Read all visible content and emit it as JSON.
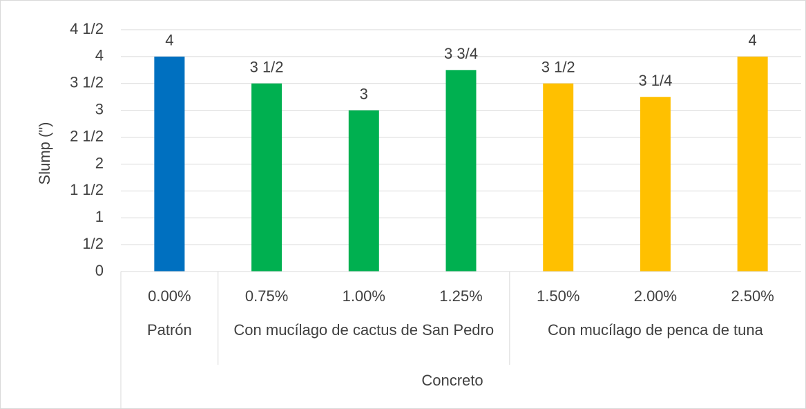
{
  "chart_data": {
    "type": "bar",
    "x_label": "Concreto",
    "y_label": "Slump (\")",
    "groups": [
      {
        "name": "Patrón",
        "categories": [
          "0.00%"
        ]
      },
      {
        "name": "Con mucílago de cactus de San Pedro",
        "categories": [
          "0.75%",
          "1.00%",
          "1.25%"
        ]
      },
      {
        "name": "Con mucílago de penca de tuna",
        "categories": [
          "1.50%",
          "2.00%",
          "2.50%"
        ]
      }
    ],
    "values": [
      4,
      3.5,
      3,
      3.75,
      3.5,
      3.25,
      4
    ],
    "value_labels": [
      "4",
      "3 1/2",
      "3",
      "3 3/4",
      "3 1/2",
      "3 1/4",
      "4"
    ],
    "colors": [
      "#0070c0",
      "#00b050",
      "#00b050",
      "#00b050",
      "#ffc000",
      "#ffc000",
      "#ffc000"
    ],
    "ylim": [
      0,
      4.5
    ],
    "yticks": [
      0,
      {
        "value": 0.5,
        "label": "1/2"
      },
      1,
      {
        "value": 1.5,
        "label": "1 1/2"
      },
      2,
      {
        "value": 2.5,
        "label": "2 1/2"
      },
      3,
      {
        "value": 3.5,
        "label": "3 1/2"
      },
      4,
      {
        "value": 4.5,
        "label": "4 1/2"
      }
    ],
    "grid": true
  }
}
